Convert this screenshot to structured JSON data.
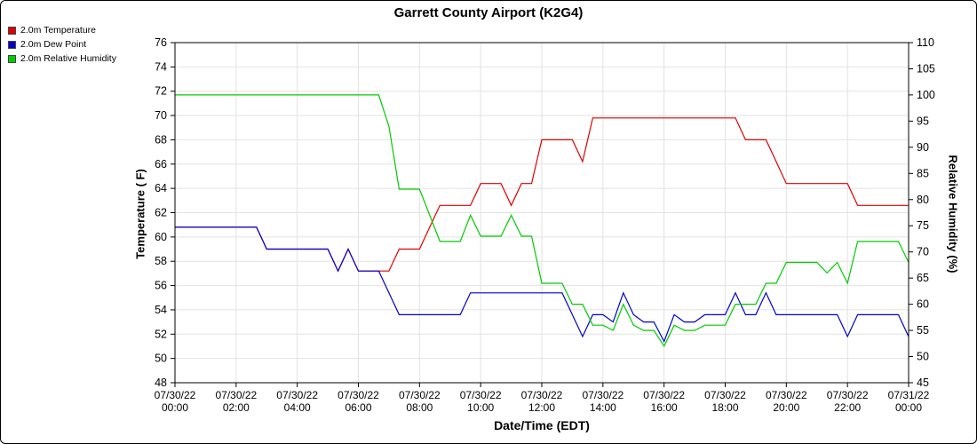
{
  "chart_data": {
    "type": "line",
    "title": "Garrett County Airport (K2G4)",
    "xlabel": "Date/Time (EDT)",
    "ylabel_left": "Temperature ( F)",
    "ylabel_right": "Relative Humidity (%)",
    "grid": true,
    "legend_position": "top-left",
    "y_left": {
      "min": 48,
      "max": 76,
      "step": 2
    },
    "y_right": {
      "min": 45,
      "max": 110,
      "step": 5
    },
    "x_range_minutes": [
      0,
      1440
    ],
    "x_ticks": [
      {
        "minutes": 0,
        "date": "07/30/22",
        "time": "00:00"
      },
      {
        "minutes": 120,
        "date": "07/30/22",
        "time": "02:00"
      },
      {
        "minutes": 240,
        "date": "07/30/22",
        "time": "04:00"
      },
      {
        "minutes": 360,
        "date": "07/30/22",
        "time": "06:00"
      },
      {
        "minutes": 480,
        "date": "07/30/22",
        "time": "08:00"
      },
      {
        "minutes": 600,
        "date": "07/30/22",
        "time": "10:00"
      },
      {
        "minutes": 720,
        "date": "07/30/22",
        "time": "12:00"
      },
      {
        "minutes": 840,
        "date": "07/30/22",
        "time": "14:00"
      },
      {
        "minutes": 960,
        "date": "07/30/22",
        "time": "16:00"
      },
      {
        "minutes": 1080,
        "date": "07/30/22",
        "time": "18:00"
      },
      {
        "minutes": 1200,
        "date": "07/30/22",
        "time": "20:00"
      },
      {
        "minutes": 1320,
        "date": "07/30/22",
        "time": "22:00"
      },
      {
        "minutes": 1440,
        "date": "07/31/22",
        "time": "00:00"
      }
    ],
    "x_minutes": [
      0,
      20,
      40,
      60,
      80,
      100,
      120,
      140,
      160,
      180,
      200,
      220,
      240,
      260,
      280,
      300,
      320,
      340,
      360,
      380,
      400,
      420,
      440,
      460,
      480,
      500,
      520,
      540,
      560,
      580,
      600,
      620,
      640,
      660,
      680,
      700,
      720,
      740,
      760,
      780,
      800,
      820,
      840,
      860,
      880,
      900,
      920,
      940,
      960,
      980,
      1000,
      1020,
      1040,
      1060,
      1080,
      1100,
      1120,
      1140,
      1160,
      1180,
      1200,
      1220,
      1240,
      1260,
      1280,
      1300,
      1320,
      1340,
      1360,
      1380,
      1400,
      1420,
      1440
    ],
    "series": [
      {
        "name": "2.0m Temperature",
        "color": "#dd0000",
        "axis": "left",
        "values": [
          60.8,
          60.8,
          60.8,
          60.8,
          60.8,
          60.8,
          60.8,
          60.8,
          60.8,
          59,
          59,
          59,
          59,
          59,
          59,
          59,
          57.2,
          59,
          57.2,
          57.2,
          57.2,
          57.2,
          59,
          59,
          59,
          60.8,
          62.6,
          62.6,
          62.6,
          62.6,
          64.4,
          64.4,
          64.4,
          62.6,
          64.4,
          64.4,
          68,
          68,
          68,
          68,
          66.2,
          69.8,
          69.8,
          69.8,
          69.8,
          69.8,
          69.8,
          69.8,
          69.8,
          69.8,
          69.8,
          69.8,
          69.8,
          69.8,
          69.8,
          69.8,
          68,
          68,
          68,
          66.2,
          64.4,
          64.4,
          64.4,
          64.4,
          64.4,
          64.4,
          64.4,
          62.6,
          62.6,
          62.6,
          62.6,
          62.6,
          62.6
        ]
      },
      {
        "name": "2.0m Dew Point",
        "color": "#0000cc",
        "axis": "left",
        "values": [
          60.8,
          60.8,
          60.8,
          60.8,
          60.8,
          60.8,
          60.8,
          60.8,
          60.8,
          59,
          59,
          59,
          59,
          59,
          59,
          59,
          57.2,
          59,
          57.2,
          57.2,
          57.2,
          55.4,
          53.6,
          53.6,
          53.6,
          53.6,
          53.6,
          53.6,
          53.6,
          55.4,
          55.4,
          55.4,
          55.4,
          55.4,
          55.4,
          55.4,
          55.4,
          55.4,
          55.4,
          53.6,
          51.8,
          53.6,
          53.6,
          53,
          55.4,
          53.6,
          53,
          53,
          51.4,
          53.6,
          53,
          53,
          53.6,
          53.6,
          53.6,
          55.4,
          53.6,
          53.6,
          55.4,
          53.6,
          53.6,
          53.6,
          53.6,
          53.6,
          53.6,
          53.6,
          51.8,
          53.6,
          53.6,
          53.6,
          53.6,
          53.6,
          51.8
        ]
      },
      {
        "name": "2.0m Relative Humidity",
        "color": "#00cc00",
        "axis": "right",
        "values": [
          100,
          100,
          100,
          100,
          100,
          100,
          100,
          100,
          100,
          100,
          100,
          100,
          100,
          100,
          100,
          100,
          100,
          100,
          100,
          100,
          100,
          94,
          82,
          82,
          82,
          77,
          72,
          72,
          72,
          77,
          73,
          73,
          73,
          77,
          73,
          73,
          64,
          64,
          64,
          60,
          60,
          56,
          56,
          55,
          60,
          56,
          55,
          55,
          52,
          56,
          55,
          55,
          56,
          56,
          56,
          60,
          60,
          60,
          64,
          64,
          68,
          68,
          68,
          68,
          66,
          68,
          64,
          72,
          72,
          72,
          72,
          72,
          68
        ]
      }
    ]
  }
}
